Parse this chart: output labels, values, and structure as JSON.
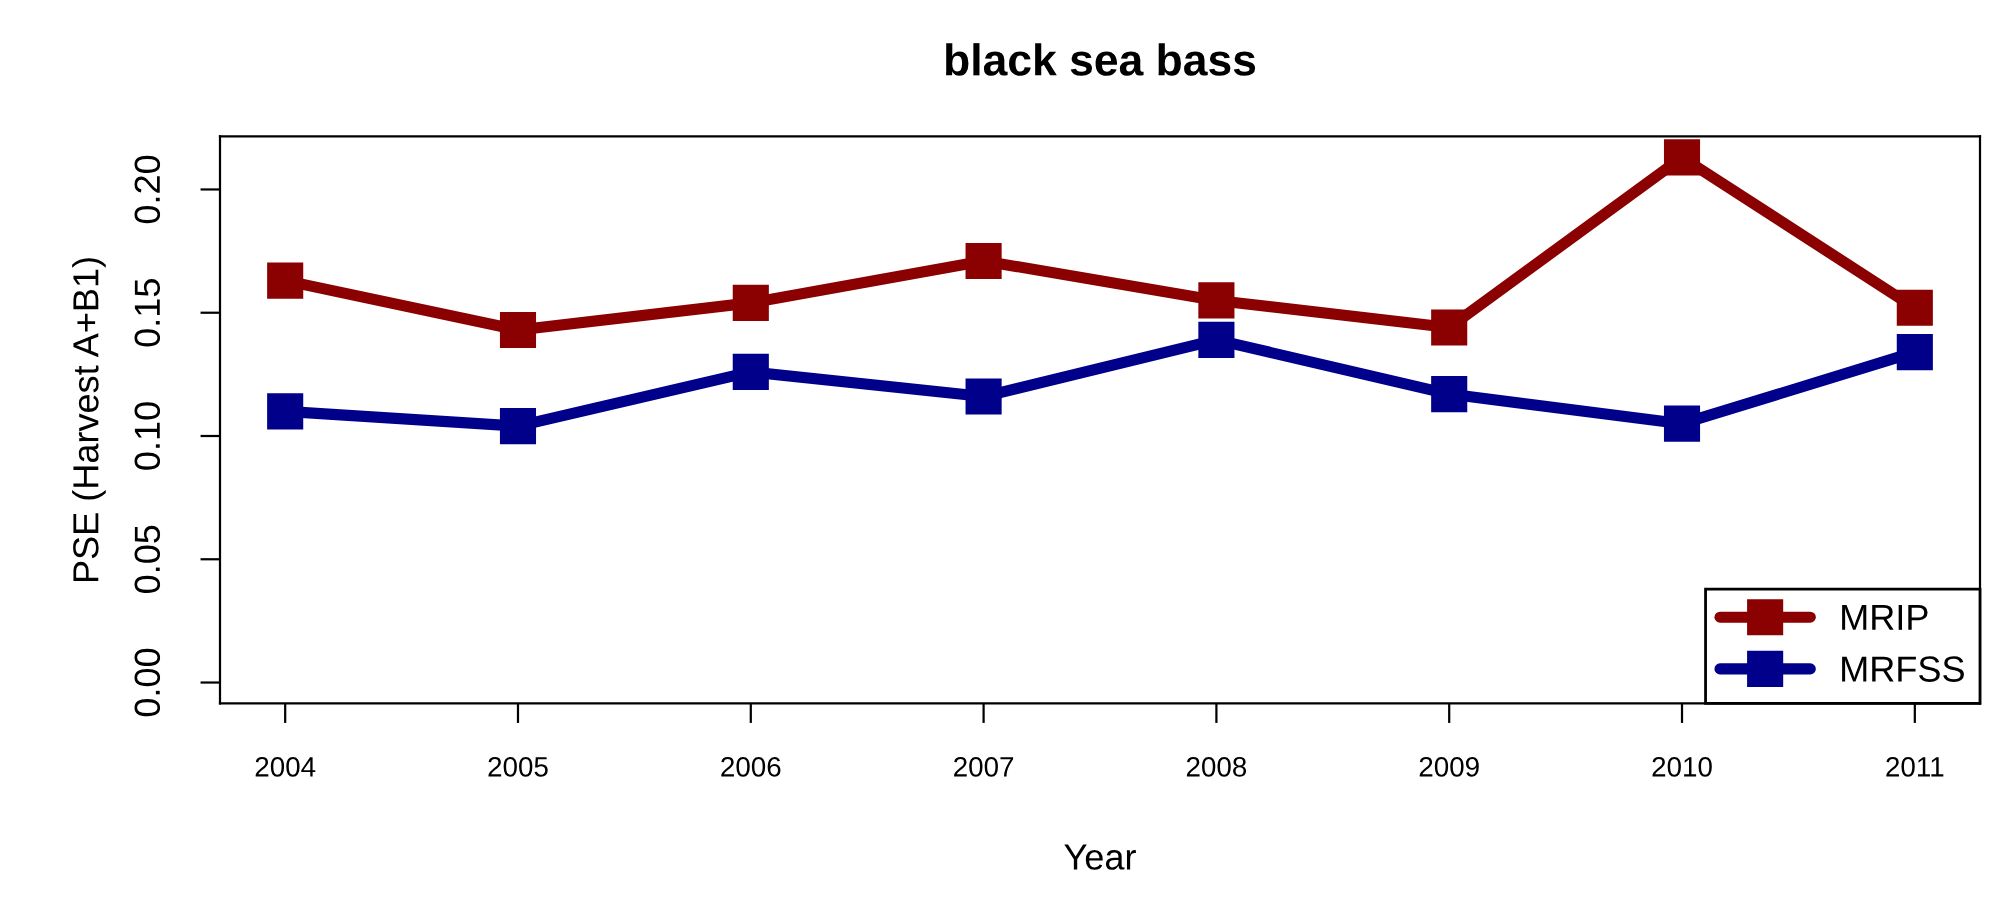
{
  "chart_data": {
    "type": "line",
    "title": "black sea bass",
    "xlabel": "Year",
    "ylabel": "PSE (Harvest A+B1)",
    "x": [
      2004,
      2005,
      2006,
      2007,
      2008,
      2009,
      2010,
      2011
    ],
    "series": [
      {
        "name": "MRIP",
        "color": "#8b0000",
        "values": [
          0.163,
          0.143,
          0.154,
          0.171,
          0.155,
          0.144,
          0.213,
          0.152
        ]
      },
      {
        "name": "MRFSS",
        "color": "#00008b",
        "values": [
          0.11,
          0.104,
          0.126,
          0.116,
          0.139,
          0.117,
          0.105,
          0.134
        ]
      }
    ],
    "xlim": [
      2003.72,
      2011.28
    ],
    "ylim": [
      -0.0085,
      0.2215
    ],
    "xticks": [
      2004,
      2005,
      2006,
      2007,
      2008,
      2009,
      2010,
      2011
    ],
    "yticks": [
      {
        "value": 0,
        "label": "0.00"
      },
      {
        "value": 0.05,
        "label": "0.05"
      },
      {
        "value": 0.1,
        "label": "0.10"
      },
      {
        "value": 0.15,
        "label": "0.15"
      },
      {
        "value": 0.2,
        "label": "0.20"
      }
    ],
    "grid": false,
    "legend": "bottom right",
    "marker": "square",
    "line_style": "solid"
  }
}
